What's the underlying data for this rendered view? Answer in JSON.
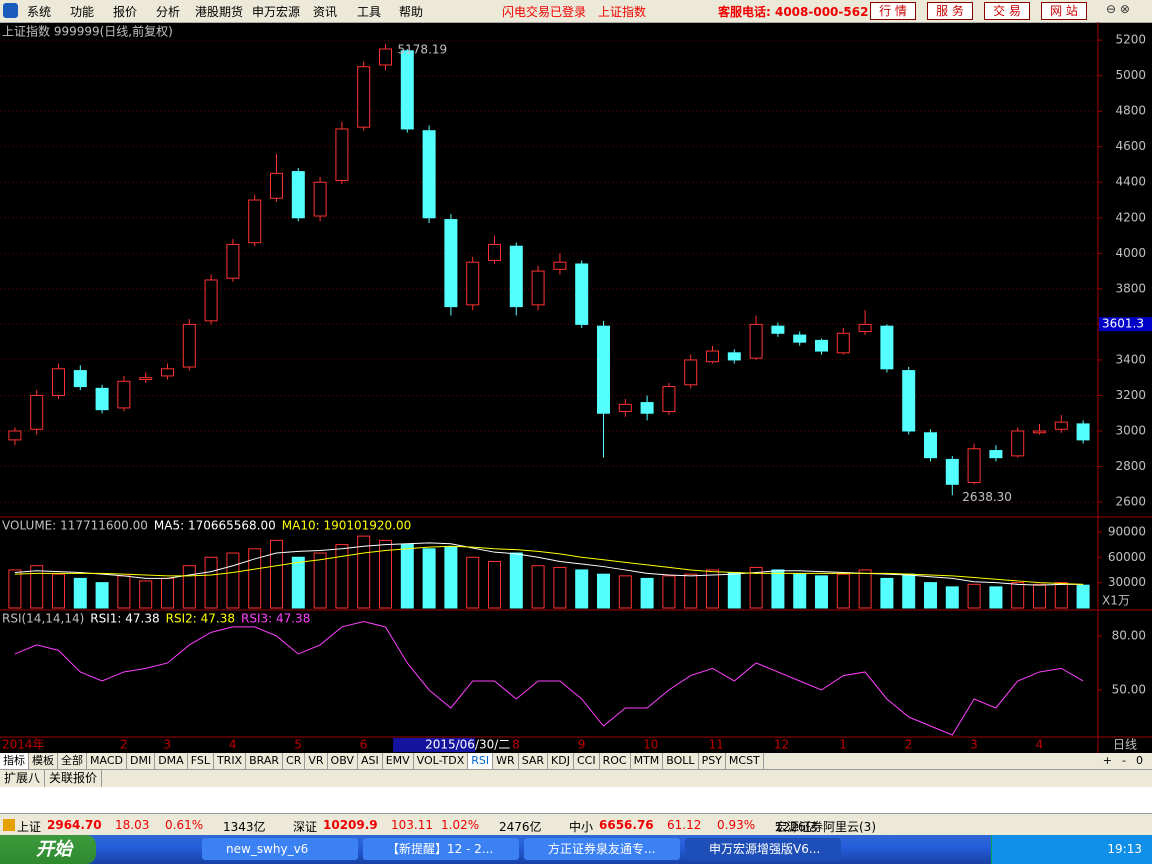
{
  "menu": [
    "系统",
    "功能",
    "报价",
    "分析",
    "港股期货",
    "申万宏源",
    "资讯",
    "工具",
    "帮助"
  ],
  "login_status": "闪电交易已登录",
  "index_name": "上证指数",
  "hotline": "客服电话: 4008-000-562",
  "buttons": [
    "行 情",
    "服 务",
    "交 易",
    "网 站"
  ],
  "chart_data": [
    {
      "type": "candlestick",
      "title": "上证指数 999999(日线,前复权)",
      "categories": [
        "2014年",
        null,
        null,
        null,
        null,
        "2",
        null,
        "3",
        null,
        null,
        "4",
        null,
        null,
        "5",
        null,
        null,
        "6",
        null,
        null,
        "2015/06/30/二",
        null,
        null,
        null,
        "8",
        null,
        null,
        "9",
        null,
        null,
        "10",
        null,
        null,
        "11",
        null,
        null,
        "12",
        null,
        null,
        "1",
        null,
        null,
        "2",
        null,
        null,
        "3",
        null,
        null,
        "4",
        null,
        null
      ],
      "open": [
        2950,
        3010,
        3200,
        3340,
        3240,
        3130,
        3290,
        3310,
        3360,
        3620,
        3860,
        4060,
        4310,
        4460,
        4210,
        4410,
        4710,
        5060,
        5140,
        4690,
        4190,
        3710,
        3960,
        4040,
        3710,
        3910,
        3940,
        3590,
        3110,
        3160,
        3110,
        3260,
        3390,
        3440,
        3410,
        3590,
        3540,
        3510,
        3440,
        3560,
        3590,
        3340,
        2990,
        2840,
        2710,
        2890,
        2860,
        2990,
        3010,
        3040
      ],
      "high": [
        3020,
        3230,
        3380,
        3370,
        3260,
        3310,
        3330,
        3380,
        3630,
        3880,
        4080,
        4330,
        4560,
        4480,
        4430,
        4740,
        5080,
        5178.19,
        5150,
        4720,
        4220,
        3980,
        4100,
        4060,
        3930,
        4000,
        3960,
        3620,
        3180,
        3200,
        3270,
        3430,
        3480,
        3460,
        3650,
        3610,
        3560,
        3520,
        3580,
        3680,
        3600,
        3360,
        3010,
        2860,
        2930,
        2920,
        3020,
        3040,
        3090,
        3060
      ],
      "low": [
        2920,
        2980,
        3180,
        3230,
        3100,
        3110,
        3270,
        3290,
        3340,
        3600,
        3840,
        4040,
        4290,
        4180,
        4180,
        4390,
        4690,
        5030,
        4680,
        4170,
        3650,
        3680,
        3940,
        3650,
        3680,
        3880,
        3580,
        2850,
        3080,
        3060,
        3090,
        3240,
        3380,
        3380,
        3400,
        3530,
        3480,
        3430,
        3430,
        3540,
        3330,
        2980,
        2830,
        2638.3,
        2700,
        2830,
        2850,
        2980,
        2990,
        2930
      ],
      "close": [
        3000,
        3200,
        3350,
        3250,
        3120,
        3280,
        3300,
        3350,
        3600,
        3850,
        4050,
        4300,
        4450,
        4200,
        4400,
        4700,
        5050,
        5150,
        4700,
        4200,
        3700,
        3950,
        4050,
        3700,
        3900,
        3950,
        3600,
        3100,
        3150,
        3100,
        3250,
        3400,
        3450,
        3400,
        3600,
        3550,
        3500,
        3450,
        3550,
        3600,
        3350,
        3000,
        2850,
        2700,
        2900,
        2850,
        3000,
        3000,
        3050,
        2950
      ],
      "up_color": "#ff3232",
      "down_color": "#54ffff",
      "ylim": [
        2516,
        5285
      ],
      "yticks": [
        2600,
        2800,
        3000,
        3200,
        3400,
        3600,
        3800,
        4000,
        4200,
        4400,
        4600,
        4800,
        5000,
        5200
      ],
      "max_label": 5178.19,
      "min_label": {
        "value": 2638.3,
        "label": "2638.30"
      },
      "price_marker": 3601.3,
      "period": "日线"
    },
    {
      "type": "bar",
      "series": [
        {
          "label": "VOLUME: 117711600.00",
          "color": "#ff3232",
          "values": [
            45000,
            50000,
            40000,
            35000,
            30000,
            38000,
            32000,
            35000,
            50000,
            60000,
            65000,
            70000,
            80000,
            60000,
            65000,
            75000,
            85000,
            80000,
            75000,
            70000,
            72000,
            60000,
            55000,
            65000,
            50000,
            48000,
            45000,
            40000,
            38000,
            35000,
            38000,
            40000,
            45000,
            42000,
            48000,
            45000,
            40000,
            38000,
            40000,
            45000,
            35000,
            40000,
            30000,
            25000,
            28000,
            25000,
            30000,
            28000,
            30000,
            27000
          ]
        },
        {
          "label": "MA5: 170665568.00",
          "color": "#ffffff",
          "values": [
            42000,
            44000,
            43000,
            42000,
            40000,
            38000,
            35000,
            35000,
            39000,
            43000,
            50000,
            58000,
            65000,
            67000,
            68000,
            70000,
            73000,
            75000,
            76000,
            77000,
            76000,
            71000,
            66000,
            64000,
            60000,
            55000,
            52000,
            49000,
            45000,
            41000,
            39000,
            38000,
            39000,
            40000,
            42000,
            44000,
            44000,
            43000,
            42000,
            41000,
            40000,
            39000,
            37000,
            35000,
            31000,
            30000,
            28000,
            27000,
            28000,
            28000
          ]
        },
        {
          "label": "MA10: 190101920.00",
          "color": "#ffff00",
          "values": [
            40000,
            41000,
            41000,
            41000,
            41000,
            40000,
            39000,
            38000,
            38000,
            39000,
            42000,
            46000,
            50000,
            54000,
            57000,
            61000,
            65000,
            68000,
            70000,
            72000,
            73000,
            72000,
            70000,
            69000,
            67000,
            64000,
            60000,
            57000,
            54000,
            51000,
            48000,
            45000,
            43000,
            42000,
            41000,
            41000,
            41000,
            41000,
            41000,
            41000,
            41000,
            40000,
            39000,
            38000,
            36000,
            34000,
            32000,
            30000,
            29000,
            28000
          ]
        }
      ],
      "ylim": [
        0,
        107600
      ],
      "yticks": [
        30000,
        60000,
        90000
      ],
      "unit": "X1万"
    },
    {
      "type": "line",
      "title": "RSI(14,14,14)",
      "series": [
        {
          "label": "RSI1: 47.38",
          "color": "#ffffff"
        },
        {
          "label": "RSI2: 47.38",
          "color": "#ffff00"
        },
        {
          "label": "RSI3: 47.38",
          "color": "#ff40ff",
          "values": [
            70,
            75,
            72,
            60,
            55,
            60,
            62,
            65,
            75,
            82,
            85,
            85,
            80,
            70,
            75,
            85,
            88,
            85,
            65,
            50,
            40,
            55,
            55,
            45,
            55,
            55,
            45,
            30,
            40,
            40,
            50,
            58,
            62,
            55,
            65,
            60,
            55,
            50,
            58,
            60,
            45,
            35,
            30,
            25,
            45,
            40,
            55,
            60,
            62,
            55
          ]
        }
      ],
      "ylim": [
        23.9,
        94.4
      ],
      "yticks": [
        {
          "value": 50,
          "label": "50.00"
        },
        {
          "value": 80,
          "label": "80.00"
        }
      ]
    }
  ],
  "tabs": [
    "指标",
    "模板",
    "全部",
    "MACD",
    "DMI",
    "DMA",
    "FSL",
    "TRIX",
    "BRAR",
    "CR",
    "VR",
    "OBV",
    "ASI",
    "EMV",
    "VOL-TDX",
    "RSI",
    "WR",
    "SAR",
    "KDJ",
    "CCI",
    "ROC",
    "MTM",
    "BOLL",
    "PSY",
    "MCST"
  ],
  "zoom": [
    "+",
    "-",
    "0"
  ],
  "ext_tabs": [
    "扩展八",
    "关联报价"
  ],
  "status": [
    {
      "name": "上证",
      "price": "2964.70",
      "change": "18.03",
      "pct": "0.61%",
      "amount": "1343亿"
    },
    {
      "name": "深证",
      "price": "10209.9",
      "change": "103.11",
      "pct": "1.02%",
      "amount": "2476亿"
    },
    {
      "name": "中小",
      "price": "6656.76",
      "change": "61.12",
      "pct": "0.93%",
      "amount": "1226亿"
    }
  ],
  "server": "宏源证券阿里云(3)",
  "taskbar": {
    "start": "开始",
    "items": [
      "new_swhy_v6",
      "【新提醒】12 - 2...",
      "方正证券泉友通专...",
      "申万宏源增强版V6..."
    ],
    "clock": "19:13"
  }
}
